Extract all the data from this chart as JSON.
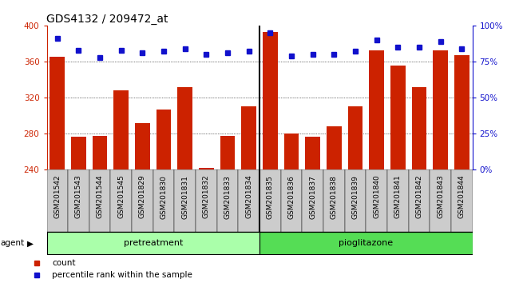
{
  "title": "GDS4132 / 209472_at",
  "samples": [
    "GSM201542",
    "GSM201543",
    "GSM201544",
    "GSM201545",
    "GSM201829",
    "GSM201830",
    "GSM201831",
    "GSM201832",
    "GSM201833",
    "GSM201834",
    "GSM201835",
    "GSM201836",
    "GSM201837",
    "GSM201838",
    "GSM201839",
    "GSM201840",
    "GSM201841",
    "GSM201842",
    "GSM201843",
    "GSM201844"
  ],
  "bar_values": [
    365,
    277,
    278,
    328,
    292,
    307,
    332,
    242,
    278,
    310,
    393,
    280,
    277,
    288,
    310,
    372,
    356,
    332,
    372,
    367
  ],
  "dot_values_pct": [
    91,
    83,
    78,
    83,
    81,
    82,
    84,
    80,
    81,
    82,
    95,
    79,
    80,
    80,
    82,
    90,
    85,
    85,
    89,
    84
  ],
  "pretreatment_count": 10,
  "pioglitazone_count": 10,
  "ylim_left": [
    240,
    400
  ],
  "ylim_right": [
    0,
    100
  ],
  "yticks_left": [
    240,
    280,
    320,
    360,
    400
  ],
  "ytick_labels_left": [
    "240",
    "280",
    "320",
    "360",
    "400"
  ],
  "yticks_right": [
    0,
    25,
    50,
    75,
    100
  ],
  "ytick_labels_right": [
    "0%",
    "25%",
    "50%",
    "75%",
    "100%"
  ],
  "bar_color": "#cc2200",
  "dot_color": "#1111cc",
  "bg_color": "#ffffff",
  "plot_bg": "#ffffff",
  "tick_bg_color": "#cccccc",
  "left_tick_color": "#cc2200",
  "right_tick_color": "#1111cc",
  "pretreatment_color": "#aaffaa",
  "pioglitazone_color": "#55dd55",
  "separator_color": "#000000",
  "agent_label": "agent",
  "pretreatment_label": "pretreatment",
  "pioglitazone_label": "pioglitazone",
  "legend_count_label": "count",
  "legend_pct_label": "percentile rank within the sample",
  "title_fontsize": 10,
  "tick_fontsize": 6.5,
  "label_fontsize": 8,
  "bar_width": 0.7,
  "n_samples": 20
}
